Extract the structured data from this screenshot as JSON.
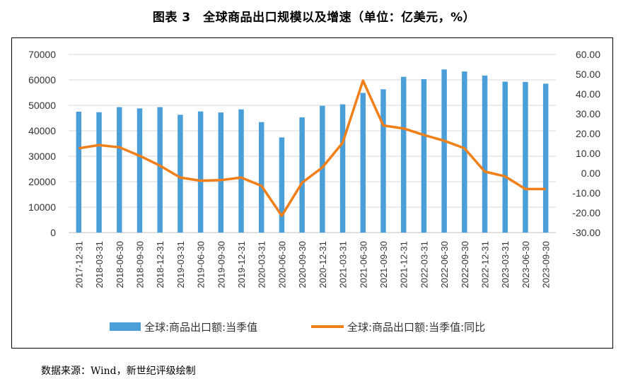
{
  "header": {
    "title": "图表 3　全球商品出口规模以及增速（单位：亿美元，%）"
  },
  "footer": {
    "source": "数据来源：Wind，新世纪评级绘制"
  },
  "colors": {
    "bar": "#4a9fd9",
    "line": "#f07f19",
    "grid": "#d9d9d9",
    "axis": "#bfbfbf"
  },
  "chart_data": {
    "type": "bar+line",
    "title": "全球商品出口规模以及增速（单位：亿美元，%）",
    "categories": [
      "2017-12-31",
      "2018-03-31",
      "2018-06-30",
      "2018-09-30",
      "2018-12-31",
      "2019-03-31",
      "2019-06-30",
      "2019-09-30",
      "2019-12-31",
      "2020-03-31",
      "2020-06-30",
      "2020-09-30",
      "2020-12-31",
      "2021-03-31",
      "2021-06-30",
      "2021-09-30",
      "2021-12-31",
      "2022-03-31",
      "2022-06-30",
      "2022-09-30",
      "2022-12-31",
      "2023-03-31",
      "2023-06-30",
      "2023-09-30"
    ],
    "series": [
      {
        "name": "全球:商品出口额:当季值",
        "type": "bar",
        "axis": "left",
        "values": [
          47500,
          47300,
          49300,
          48800,
          49300,
          46300,
          47600,
          47200,
          48400,
          43400,
          37400,
          45300,
          49800,
          50400,
          54900,
          56300,
          61200,
          60300,
          64100,
          63300,
          61700,
          59300,
          59200,
          58500
        ]
      },
      {
        "name": "全球:商品出口额:当季值:同比",
        "type": "line",
        "axis": "right",
        "values": [
          12.6,
          14.2,
          13.1,
          8.8,
          3.8,
          -2.2,
          -3.8,
          -3.5,
          -2.2,
          -6.4,
          -21.5,
          -4.8,
          2.9,
          15.4,
          46.8,
          24.1,
          22.6,
          19.3,
          16.4,
          12.6,
          0.8,
          -1.6,
          -8.0,
          -8.0
        ]
      }
    ],
    "y_left": {
      "min": 0,
      "max": 70000,
      "step": 10000,
      "tick_labels": [
        "0",
        "10000",
        "20000",
        "30000",
        "40000",
        "50000",
        "60000",
        "70000"
      ]
    },
    "y_right": {
      "min": -30,
      "max": 60,
      "step": 10,
      "tick_labels": [
        "-30.00",
        "-20.00",
        "-10.00",
        "0.00",
        "10.00",
        "20.00",
        "30.00",
        "40.00",
        "50.00",
        "60.00"
      ]
    },
    "grid": true,
    "legend_position": "bottom"
  }
}
